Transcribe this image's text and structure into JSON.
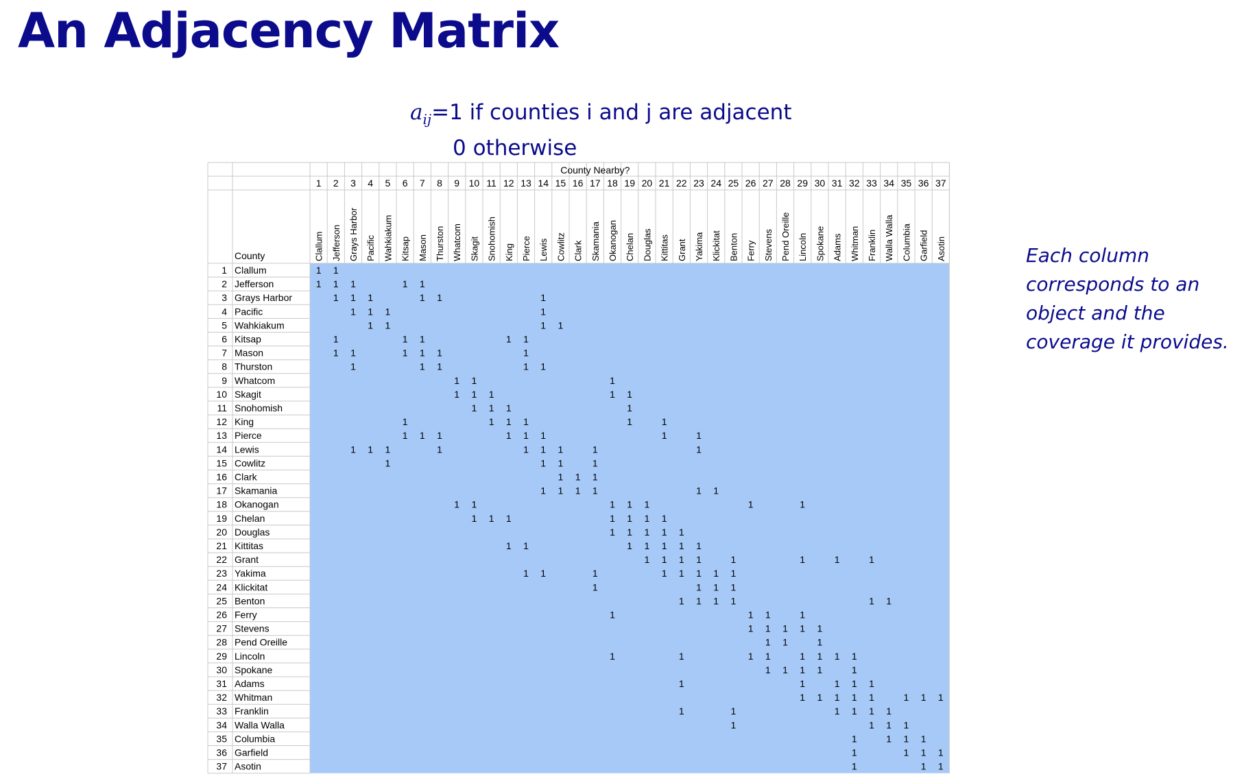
{
  "title": "An Adjacency Matrix",
  "formula": {
    "symbol": "a",
    "subscript": "ij",
    "line1_rest": "=1 if counties i and j are adjacent",
    "line2": "0 otherwise"
  },
  "note": "Each column corresponds to an object and the coverage it provides.",
  "table": {
    "header_group": "County Nearby?",
    "row_header": "County",
    "fill_color": "#a7c9f7",
    "counties": [
      "Clallum",
      "Jefferson",
      "Grays Harbor",
      "Pacific",
      "Wahkiakum",
      "Kitsap",
      "Mason",
      "Thurston",
      "Whatcom",
      "Skagit",
      "Snohomish",
      "King",
      "Pierce",
      "Lewis",
      "Cowlitz",
      "Clark",
      "Skamania",
      "Okanogan",
      "Chelan",
      "Douglas",
      "Kittitas",
      "Grant",
      "Yakima",
      "Klickitat",
      "Benton",
      "Ferry",
      "Stevens",
      "Pend Oreille",
      "Lincoln",
      "Spokane",
      "Adams",
      "Whitman",
      "Franklin",
      "Walla Walla",
      "Columbia",
      "Garfield",
      "Asotin"
    ],
    "adjacency": [
      [
        1,
        2
      ],
      [
        1,
        2,
        3,
        6,
        7
      ],
      [
        2,
        3,
        4,
        7,
        8,
        14
      ],
      [
        3,
        4,
        5,
        14
      ],
      [
        4,
        5,
        14,
        15
      ],
      [
        2,
        6,
        7,
        12,
        13
      ],
      [
        2,
        3,
        6,
        7,
        8,
        13
      ],
      [
        3,
        7,
        8,
        13,
        14
      ],
      [
        9,
        10,
        18
      ],
      [
        9,
        10,
        11,
        18,
        19
      ],
      [
        10,
        11,
        12,
        19
      ],
      [
        6,
        11,
        12,
        13,
        19,
        21
      ],
      [
        6,
        7,
        8,
        12,
        13,
        14,
        21,
        23
      ],
      [
        3,
        4,
        5,
        8,
        13,
        14,
        15,
        17,
        23
      ],
      [
        5,
        14,
        15,
        17
      ],
      [
        15,
        16,
        17
      ],
      [
        14,
        15,
        16,
        17,
        23,
        24
      ],
      [
        9,
        10,
        18,
        19,
        20,
        26,
        29
      ],
      [
        10,
        11,
        12,
        18,
        19,
        20,
        21
      ],
      [
        18,
        19,
        20,
        21,
        22
      ],
      [
        12,
        13,
        19,
        20,
        21,
        22,
        23
      ],
      [
        20,
        21,
        22,
        23,
        25,
        29,
        31,
        33
      ],
      [
        13,
        14,
        17,
        21,
        22,
        23,
        24,
        25
      ],
      [
        17,
        23,
        24,
        25
      ],
      [
        22,
        23,
        24,
        25,
        33,
        34
      ],
      [
        18,
        26,
        27,
        29
      ],
      [
        26,
        27,
        28,
        29,
        30
      ],
      [
        27,
        28,
        30
      ],
      [
        18,
        22,
        26,
        27,
        29,
        30,
        31,
        32
      ],
      [
        27,
        28,
        29,
        30,
        32
      ],
      [
        22,
        29,
        31,
        32,
        33
      ],
      [
        29,
        30,
        31,
        32,
        33,
        35,
        36,
        37
      ],
      [
        22,
        25,
        31,
        32,
        33,
        34
      ],
      [
        25,
        33,
        34,
        35
      ],
      [
        32,
        34,
        35,
        36
      ],
      [
        32,
        35,
        36,
        37
      ],
      [
        32,
        36,
        37
      ]
    ]
  }
}
